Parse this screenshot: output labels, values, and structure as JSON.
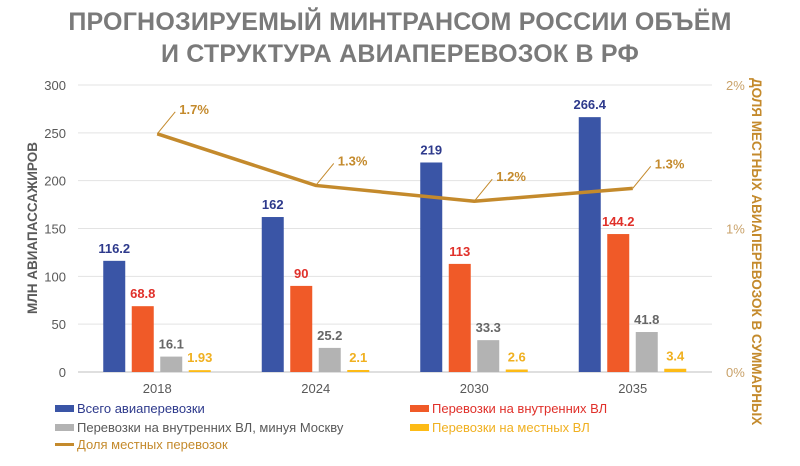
{
  "chart_data": {
    "type": "bar",
    "title_line1": "ПРОГНОЗИРУЕМЫЙ МИНТРАНСОМ РОССИИ ОБЪЁМ",
    "title_line2": "И СТРУКТУРА АВИАПЕРЕВОЗОК В РФ",
    "categories": [
      "2018",
      "2024",
      "2030",
      "2035"
    ],
    "ylabel": "МЛН АВИАПАССАЖИРОВ",
    "ylim": [
      0,
      300
    ],
    "yticks": [
      "0",
      "50",
      "100",
      "150",
      "200",
      "250",
      "300"
    ],
    "y2label": "ДОЛЯ МЕСТНЫХ  АВИАПЕРЕВОЗОК В СУММАРНЫХ",
    "y2lim": [
      0,
      2
    ],
    "y2ticks": [
      "0%",
      "1%",
      "2%"
    ],
    "grid": true,
    "series": [
      {
        "name": "Всего авиаперевозки",
        "color": "#3a55a6",
        "label_color": "#2e3a8c",
        "values": [
          116.2,
          162,
          219,
          266.4
        ],
        "labels": [
          "116.2",
          "162",
          "219",
          "266.4"
        ]
      },
      {
        "name": "Перевозки на внутренних ВЛ",
        "color": "#f05a28",
        "label_color": "#e0302a",
        "values": [
          68.8,
          90,
          113,
          144.2
        ],
        "labels": [
          "68.8",
          "90",
          "113",
          "144.2"
        ]
      },
      {
        "name": "Перевозки на внутренних ВЛ, минуя Москву",
        "color": "#b3b3b3",
        "label_color": "#666666",
        "values": [
          16.1,
          25.2,
          33.3,
          41.8
        ],
        "labels": [
          "16.1",
          "25.2",
          "33.3",
          "41.8"
        ]
      },
      {
        "name": "Перевозки на местных ВЛ",
        "color": "#fdbb16",
        "label_color": "#f0b020",
        "values": [
          1.93,
          2.1,
          2.6,
          3.4
        ],
        "labels": [
          "1.93",
          "2.1",
          "2.6",
          "3.4"
        ]
      }
    ],
    "line": {
      "name": "Доля местных перевозок",
      "color": "#c48a2c",
      "values": [
        1.66,
        1.3,
        1.19,
        1.28
      ],
      "labels": [
        "1.7%",
        "1.3%",
        "1.2%",
        "1.3%"
      ]
    },
    "legend_position": "bottom"
  }
}
